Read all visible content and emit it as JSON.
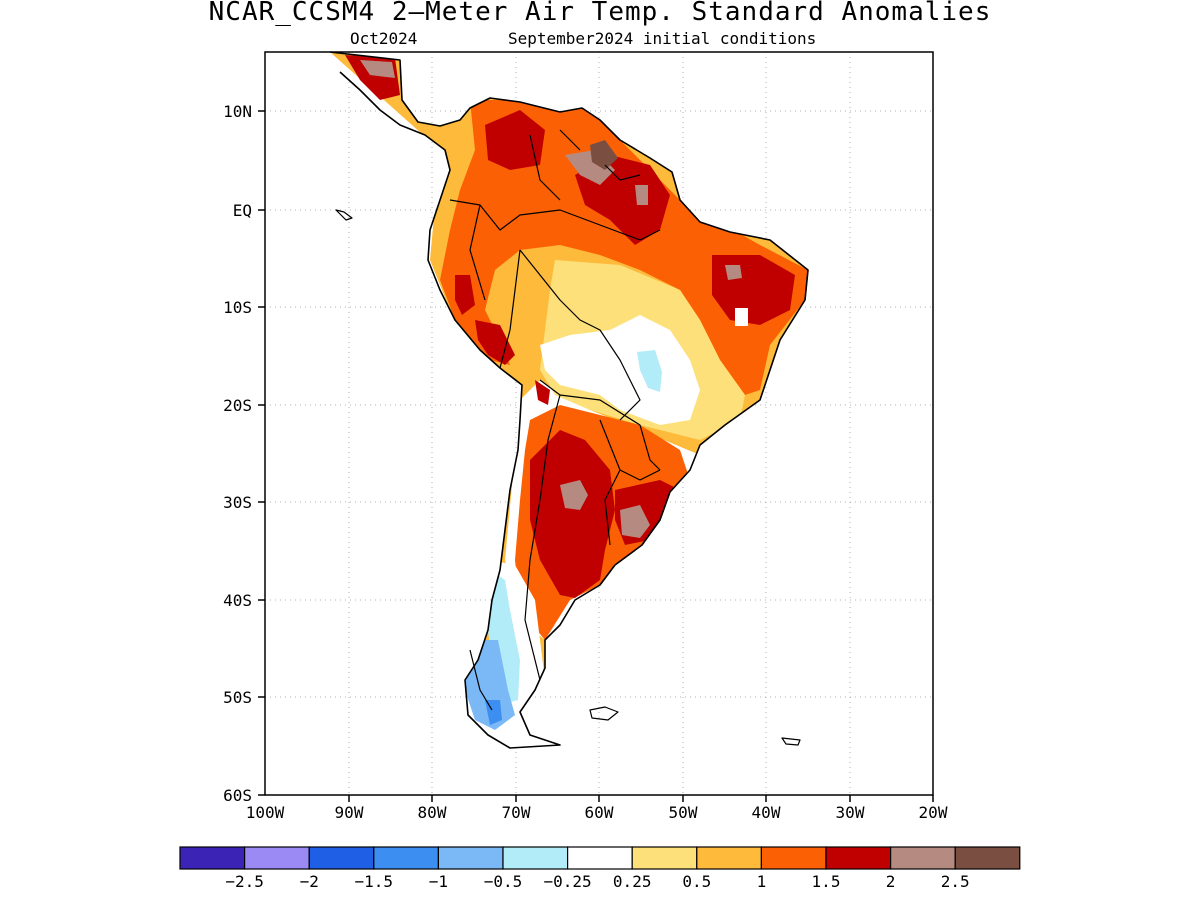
{
  "title": "NCAR_CCSM4 2—Meter Air Temp. Standard Anomalies",
  "subtitle_left": "Oct2024",
  "subtitle_right": "September2024 initial conditions",
  "lat_ticks": [
    "10N",
    "EQ",
    "10S",
    "20S",
    "30S",
    "40S",
    "50S",
    "60S"
  ],
  "lon_ticks": [
    "100W",
    "90W",
    "80W",
    "70W",
    "60W",
    "50W",
    "40W",
    "30W",
    "20W"
  ],
  "colorbar": {
    "colors": [
      "#3b23b5",
      "#9b8af4",
      "#1e5fe6",
      "#3c8ef0",
      "#7bb8f6",
      "#b2ecf8",
      "#ffffff",
      "#fde07a",
      "#fdba3b",
      "#fb6104",
      "#c00000",
      "#b58a80",
      "#7a4e41"
    ],
    "labels": [
      "−2.5",
      "−2",
      "−1.5",
      "−1",
      "−0.5",
      "−0.25",
      "0.25",
      "0.5",
      "1",
      "1.5",
      "2",
      "2.5"
    ]
  },
  "colors": {
    "brown": "#7a4e41",
    "mauve": "#b58a80",
    "dark_red": "#c00000",
    "orange_red": "#fb6104",
    "orange": "#fdba3b",
    "yellow": "#fde07a",
    "light_cyan": "#b2ecf8",
    "light_blue": "#7bb8f6",
    "blue": "#3c8ef0"
  }
}
